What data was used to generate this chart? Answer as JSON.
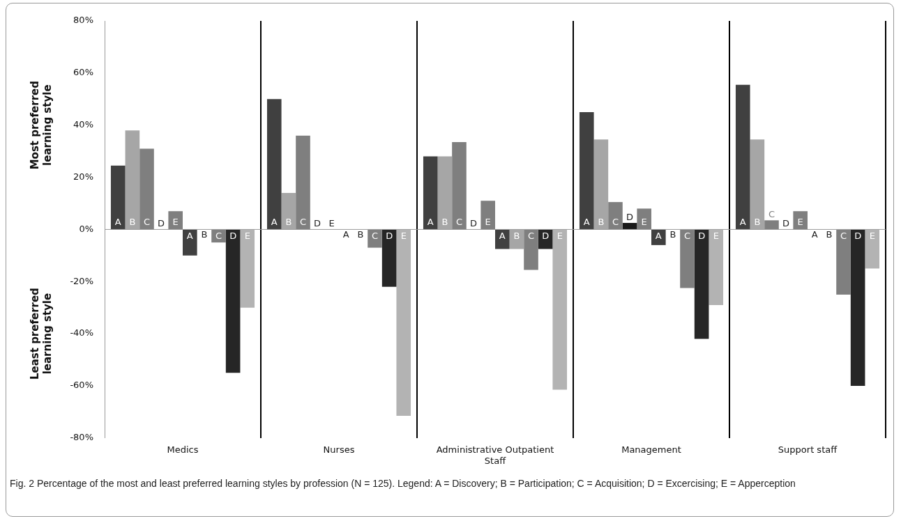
{
  "chart_data": {
    "type": "bar",
    "categories": [
      "Medics",
      "Nurses",
      "Administrative Outpatient Staff",
      "Management",
      "Support staff"
    ],
    "ylabel": "Most preferred learning style",
    "annotations": [
      "Least preferred learning style",
      "Fig. 2 Percentage of the most and least preferred learning styles by profession (N = 125). Legend: A = Discovery; B = Participation; C = Acquisition; D = Excercising; E = Apperception"
    ],
    "series": [
      {
        "name": "A",
        "color": "#404040",
        "values": [
          24.5,
          50,
          28,
          45,
          55.5
        ]
      },
      {
        "name": "B",
        "color": "#a6a6a6",
        "values": [
          38,
          14,
          28,
          34.5,
          34.5
        ]
      },
      {
        "name": "C",
        "color": "#7f7f7f",
        "values": [
          31,
          36,
          33.5,
          10.5,
          3.5
        ]
      },
      {
        "name": "D",
        "color": "#1a1a1a",
        "values": [
          0,
          0,
          0,
          2.5,
          0
        ]
      },
      {
        "name": "E",
        "color": "#7f7f7f",
        "values": [
          7,
          0,
          11,
          8,
          7
        ]
      },
      {
        "name": "A",
        "color": "#404040",
        "values": [
          -10,
          0,
          -7.5,
          -6,
          0
        ]
      },
      {
        "name": "B",
        "color": "#a6a6a6",
        "values": [
          0,
          0,
          -7.5,
          0,
          0
        ]
      },
      {
        "name": "C",
        "color": "#7f7f7f",
        "values": [
          -5,
          -7,
          -15.5,
          -22.5,
          -25
        ]
      },
      {
        "name": "D",
        "color": "#262626",
        "values": [
          -55,
          -22,
          -7.5,
          -42,
          -60
        ]
      },
      {
        "name": "E",
        "color": "#b3b3b3",
        "values": [
          -30,
          -71.5,
          -61.5,
          -29,
          -15
        ]
      }
    ],
    "ylim": [
      -80,
      80
    ],
    "yticks": [
      {
        "value": -80,
        "label": "-80%"
      },
      {
        "value": -60,
        "label": "-60%"
      },
      {
        "value": -40,
        "label": "-40%"
      },
      {
        "value": -20,
        "label": "-20%"
      },
      {
        "value": 0,
        "label": "0%"
      },
      {
        "value": 20,
        "label": "20%"
      },
      {
        "value": 40,
        "label": "40%"
      },
      {
        "value": 60,
        "label": "60%"
      },
      {
        "value": 80,
        "label": "80%"
      }
    ],
    "grid": "x",
    "ref_lines": [
      {
        "axis": "y",
        "value": 0,
        "color": "#999999"
      }
    ],
    "legend": false
  }
}
